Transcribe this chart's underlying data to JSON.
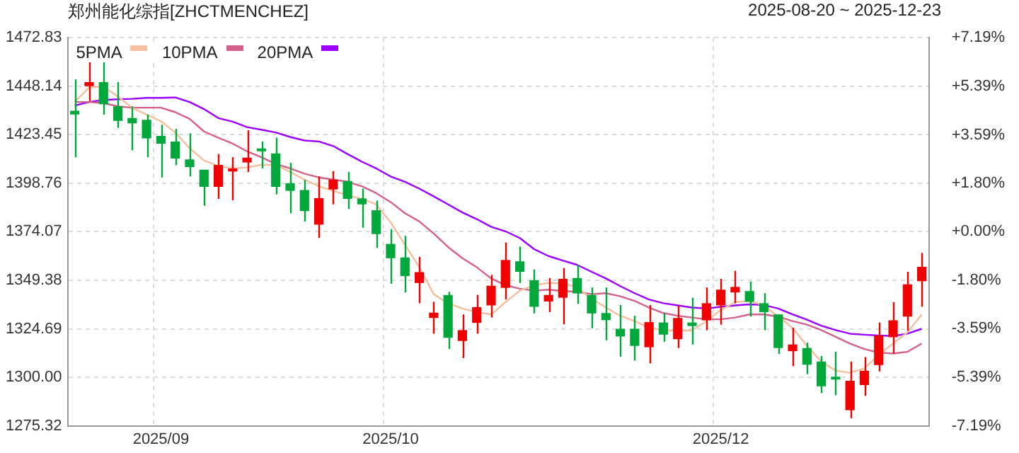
{
  "chart_data": {
    "type": "candlestick",
    "title": "郑州能化综指[ZHCTMENCHEZ]",
    "subtitle": "2025-08-20 ~ 2025-12-23",
    "categories": [
      null,
      null,
      null,
      null,
      null,
      null,
      "2025/09",
      null,
      null,
      null,
      null,
      null,
      null,
      null,
      null,
      null,
      null,
      null,
      null,
      null,
      null,
      null,
      "2025/10",
      null,
      null,
      null,
      null,
      null,
      null,
      null,
      null,
      null,
      null,
      null,
      null,
      null,
      null,
      null,
      null,
      null,
      null,
      null,
      null,
      null,
      null,
      "2025/12",
      null,
      null,
      null,
      null,
      null,
      null,
      null,
      null,
      null,
      null,
      null,
      null,
      null,
      null
    ],
    "ohlc": [
      [
        1435.6,
        1451.6,
        1412.0,
        1433.7
      ],
      [
        1448.1,
        1462.3,
        1440.6,
        1450.2
      ],
      [
        1450.2,
        1462.3,
        1433.7,
        1439.0
      ],
      [
        1437.9,
        1450.2,
        1426.9,
        1430.5
      ],
      [
        1431.9,
        1437.9,
        1415.5,
        1429.2
      ],
      [
        1431.0,
        1433.7,
        1412.0,
        1421.6
      ],
      [
        1422.8,
        1428.5,
        1401.7,
        1418.9
      ],
      [
        1420.0,
        1426.4,
        1407.9,
        1411.3
      ],
      [
        1410.9,
        1424.1,
        1402.2,
        1407.0
      ],
      [
        1405.6,
        1405.6,
        1387.3,
        1396.9
      ],
      [
        1396.9,
        1413.6,
        1390.8,
        1408.1
      ],
      [
        1404.7,
        1412.0,
        1390.1,
        1406.3
      ],
      [
        1409.3,
        1425.7,
        1404.5,
        1411.8
      ],
      [
        1415.9,
        1420.0,
        1406.3,
        1415.0
      ],
      [
        1413.9,
        1421.9,
        1393.1,
        1396.9
      ],
      [
        1398.8,
        1409.1,
        1383.5,
        1394.9
      ],
      [
        1395.3,
        1400.4,
        1379.3,
        1384.6
      ],
      [
        1377.7,
        1402.2,
        1370.9,
        1391.2
      ],
      [
        1395.6,
        1404.9,
        1388.0,
        1400.6
      ],
      [
        1399.9,
        1404.5,
        1385.7,
        1390.8
      ],
      [
        1391.0,
        1396.0,
        1376.1,
        1388.0
      ],
      [
        1385.0,
        1389.9,
        1365.9,
        1372.9
      ],
      [
        1367.9,
        1375.4,
        1347.6,
        1360.6
      ],
      [
        1361.0,
        1372.0,
        1343.2,
        1351.5
      ],
      [
        1348.0,
        1361.3,
        1337.7,
        1353.5
      ],
      [
        1330.2,
        1338.4,
        1322.2,
        1332.9
      ],
      [
        1341.9,
        1343.5,
        1314.4,
        1320.1
      ],
      [
        1318.5,
        1332.0,
        1309.8,
        1324.0
      ],
      [
        1327.7,
        1341.9,
        1322.2,
        1335.7
      ],
      [
        1336.6,
        1352.1,
        1330.4,
        1346.6
      ],
      [
        1345.5,
        1368.6,
        1339.6,
        1359.7
      ],
      [
        1359.0,
        1366.5,
        1348.0,
        1353.7
      ],
      [
        1349.4,
        1354.9,
        1332.5,
        1335.9
      ],
      [
        1338.6,
        1350.5,
        1333.2,
        1341.9
      ],
      [
        1340.5,
        1355.6,
        1327.0,
        1350.1
      ],
      [
        1350.5,
        1357.2,
        1337.3,
        1342.7
      ],
      [
        1341.9,
        1345.7,
        1325.0,
        1332.5
      ],
      [
        1332.7,
        1345.7,
        1318.8,
        1329.1
      ],
      [
        1324.7,
        1336.8,
        1310.5,
        1320.8
      ],
      [
        1324.7,
        1331.3,
        1308.5,
        1316.0
      ],
      [
        1315.3,
        1336.8,
        1307.1,
        1328.1
      ],
      [
        1327.9,
        1332.7,
        1318.1,
        1321.7
      ],
      [
        1319.4,
        1336.4,
        1314.9,
        1330.2
      ],
      [
        1327.9,
        1340.5,
        1316.7,
        1326.1
      ],
      [
        1329.0,
        1345.7,
        1324.0,
        1337.7
      ],
      [
        1336.6,
        1350.1,
        1326.8,
        1344.6
      ],
      [
        1343.2,
        1354.2,
        1337.7,
        1346.0
      ],
      [
        1343.9,
        1348.7,
        1330.9,
        1338.4
      ],
      [
        1337.7,
        1342.8,
        1324.0,
        1333.2
      ],
      [
        1332.0,
        1332.0,
        1311.9,
        1314.9
      ],
      [
        1313.3,
        1325.2,
        1305.7,
        1316.7
      ],
      [
        1314.9,
        1317.6,
        1301.6,
        1306.4
      ],
      [
        1308.0,
        1310.8,
        1292.0,
        1295.4
      ],
      [
        1299.6,
        1313.0,
        1290.9,
        1298.9
      ],
      [
        1283.3,
        1308.0,
        1279.2,
        1298.2
      ],
      [
        1296.1,
        1310.3,
        1290.6,
        1303.4
      ],
      [
        1306.2,
        1327.9,
        1303.0,
        1321.3
      ],
      [
        1320.4,
        1338.2,
        1312.1,
        1329.0
      ],
      [
        1330.9,
        1353.7,
        1323.6,
        1347.3
      ],
      [
        1348.9,
        1363.3,
        1335.9,
        1356.2
      ]
    ],
    "series": [
      {
        "name": "5PMA",
        "type": "line",
        "color": "#f5bfa0",
        "values": [
          1440.1,
          1447.5,
          1447.9,
          1442.9,
          1437.2,
          1433.7,
          1430.3,
          1424.6,
          1416.6,
          1410.4,
          1407.5,
          1406.3,
          1406.8,
          1408.1,
          1408.1,
          1404.5,
          1400.6,
          1397.2,
          1394.9,
          1392.6,
          1390.8,
          1388.0,
          1378.9,
          1367.5,
          1356.0,
          1342.3,
          1337.7,
          1335.0,
          1333.2,
          1332.0,
          1338.2,
          1344.1,
          1346.9,
          1348.0,
          1347.8,
          1345.7,
          1340.0,
          1335.5,
          1331.3,
          1328.6,
          1325.2,
          1324.0,
          1323.6,
          1324.0,
          1328.6,
          1334.3,
          1338.2,
          1338.9,
          1336.6,
          1330.9,
          1325.2,
          1316.0,
          1308.0,
          1303.4,
          1302.3,
          1304.6,
          1311.4,
          1317.2,
          1322.9,
          1332.0
        ]
      },
      {
        "name": "10PMA",
        "type": "line",
        "color": "#d4608c",
        "values": [
          1440.1,
          1440.1,
          1439.5,
          1437.9,
          1437.2,
          1437.2,
          1437.2,
          1434.9,
          1431.5,
          1425.1,
          1421.9,
          1418.9,
          1415.0,
          1412.0,
          1408.6,
          1406.3,
          1403.6,
          1401.7,
          1400.6,
          1399.5,
          1397.2,
          1393.7,
          1389.2,
          1383.5,
          1379.3,
          1373.2,
          1366.3,
          1360.6,
          1356.0,
          1350.3,
          1346.9,
          1345.1,
          1344.1,
          1344.6,
          1343.9,
          1343.5,
          1342.3,
          1342.8,
          1341.2,
          1338.9,
          1335.5,
          1332.7,
          1331.3,
          1330.4,
          1329.5,
          1329.5,
          1330.4,
          1332.0,
          1332.0,
          1330.9,
          1328.6,
          1326.8,
          1324.0,
          1320.6,
          1317.2,
          1314.4,
          1312.6,
          1312.1,
          1313.0,
          1317.2
        ]
      },
      {
        "name": "20PMA",
        "type": "line",
        "color": "#9b00ff",
        "values": [
          1438.3,
          1440.1,
          1441.1,
          1441.5,
          1441.7,
          1442.2,
          1442.2,
          1442.4,
          1440.1,
          1436.5,
          1431.9,
          1430.1,
          1427.3,
          1426.0,
          1424.6,
          1422.3,
          1420.5,
          1420.0,
          1417.7,
          1413.6,
          1409.7,
          1406.3,
          1402.2,
          1399.5,
          1396.0,
          1392.1,
          1388.0,
          1383.9,
          1380.5,
          1376.6,
          1374.3,
          1370.9,
          1365.2,
          1361.7,
          1359.4,
          1357.2,
          1353.7,
          1350.3,
          1346.4,
          1342.8,
          1339.6,
          1337.7,
          1336.6,
          1335.5,
          1335.0,
          1335.9,
          1336.6,
          1337.1,
          1336.8,
          1335.0,
          1332.0,
          1329.3,
          1326.3,
          1324.0,
          1322.2,
          1321.7,
          1321.3,
          1321.0,
          1322.2,
          1324.7
        ]
      }
    ],
    "ylim": [
      1275.32,
      1472.83
    ],
    "yticks": [
      {
        "value": 1275.32,
        "label": "1275.32"
      },
      {
        "value": 1300,
        "label": "1300.00"
      },
      {
        "value": 1324.69,
        "label": "1324.69"
      },
      {
        "value": 1349.38,
        "label": "1349.38"
      },
      {
        "value": 1374.07,
        "label": "1374.07"
      },
      {
        "value": 1398.76,
        "label": "1398.76"
      },
      {
        "value": 1423.45,
        "label": "1423.45"
      },
      {
        "value": 1448.14,
        "label": "1448.14"
      },
      {
        "value": 1472.83,
        "label": "1472.83"
      }
    ],
    "y2lim": [
      -7.19,
      7.19
    ],
    "y2ticks": [
      {
        "value": -7.19,
        "label": "-7.19%"
      },
      {
        "value": -5.39,
        "label": "-5.39%"
      },
      {
        "value": -3.59,
        "label": "-3.59%"
      },
      {
        "value": -1.8,
        "label": "-1.80%"
      },
      {
        "value": 0,
        "label": "+0.00%"
      },
      {
        "value": 1.8,
        "label": "+1.80%"
      },
      {
        "value": 3.59,
        "label": "+3.59%"
      },
      {
        "value": 5.39,
        "label": "+5.39%"
      },
      {
        "value": 7.19,
        "label": "+7.19%"
      }
    ],
    "grid": true,
    "legend": "top left"
  }
}
